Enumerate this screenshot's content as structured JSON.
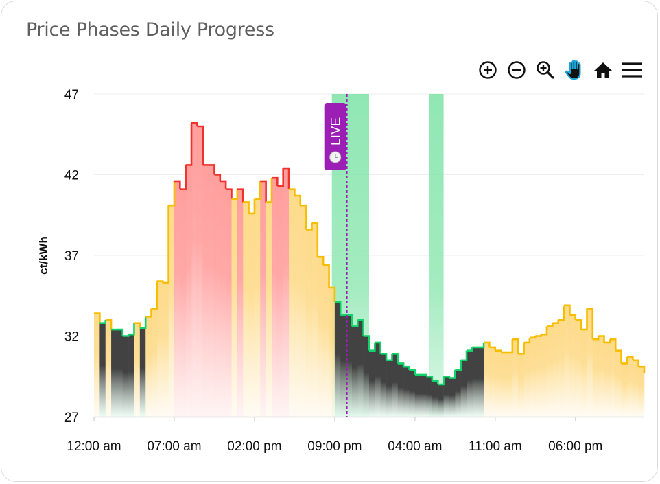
{
  "card": {
    "title": "Price Phases Daily Progress"
  },
  "toolbar": {
    "icons": [
      "zoom-in-icon",
      "zoom-out-icon",
      "selection-zoom-icon",
      "pan-hand-icon",
      "reset-home-icon",
      "menu-icon"
    ],
    "pan_active_color": "#1ea7d8"
  },
  "chart_data": {
    "type": "area",
    "subtype": "step",
    "title": "Price Phases Daily Progress",
    "ylabel": "ct/kWh",
    "xlabel": "",
    "ylim": [
      27,
      47
    ],
    "yticks": [
      47,
      42,
      37,
      32,
      27
    ],
    "xticks": [
      "12:00 am",
      "07:00 am",
      "02:00 pm",
      "09:00 pm",
      "04:00 am",
      "11:00 am",
      "06:00 pm"
    ],
    "grid": true,
    "phase_colors": {
      "high": {
        "stroke": "#f0322c",
        "fill": "#ff9a98"
      },
      "mid": {
        "stroke": "#f7bd00",
        "fill": "#fdd985"
      },
      "low": {
        "stroke": "#10d46a",
        "fill": "#424242"
      }
    },
    "highlight_color": "#7de3a6",
    "highlight_bands": [
      {
        "day": 1,
        "from": "20:45",
        "to": "24:00"
      },
      {
        "day": 2,
        "from": "05:15",
        "to": "06:30"
      }
    ],
    "live_marker": {
      "label": "LIVE",
      "day": 1,
      "time": "22:04",
      "color": "#9b1fb5"
    },
    "interval_minutes": 30,
    "points": [
      [
        "00:00",
        33.4,
        "mid"
      ],
      [
        "00:30",
        32.8,
        "low"
      ],
      [
        "01:00",
        33.0,
        "mid"
      ],
      [
        "01:30",
        32.4,
        "low"
      ],
      [
        "02:00",
        32.4,
        "low"
      ],
      [
        "02:30",
        32.0,
        "low"
      ],
      [
        "03:00",
        32.1,
        "low"
      ],
      [
        "03:30",
        32.8,
        "mid"
      ],
      [
        "04:00",
        32.5,
        "low"
      ],
      [
        "04:30",
        33.2,
        "mid"
      ],
      [
        "05:00",
        33.7,
        "mid"
      ],
      [
        "05:30",
        35.4,
        "mid"
      ],
      [
        "06:00",
        35.3,
        "mid"
      ],
      [
        "06:30",
        40.1,
        "mid"
      ],
      [
        "07:00",
        41.6,
        "high"
      ],
      [
        "07:30",
        41.1,
        "high"
      ],
      [
        "08:00",
        42.6,
        "high"
      ],
      [
        "08:30",
        45.2,
        "high"
      ],
      [
        "09:00",
        45.0,
        "high"
      ],
      [
        "09:30",
        42.6,
        "high"
      ],
      [
        "10:00",
        42.6,
        "high"
      ],
      [
        "10:30",
        42.0,
        "high"
      ],
      [
        "11:00",
        41.6,
        "high"
      ],
      [
        "11:30",
        41.1,
        "high"
      ],
      [
        "12:00",
        40.5,
        "mid"
      ],
      [
        "12:30",
        41.1,
        "high"
      ],
      [
        "13:00",
        40.3,
        "mid"
      ],
      [
        "13:30",
        39.6,
        "mid"
      ],
      [
        "14:00",
        40.5,
        "mid"
      ],
      [
        "14:30",
        41.6,
        "high"
      ],
      [
        "15:00",
        40.3,
        "mid"
      ],
      [
        "15:30",
        41.8,
        "high"
      ],
      [
        "16:00",
        41.3,
        "high"
      ],
      [
        "16:30",
        42.4,
        "high"
      ],
      [
        "17:00",
        41.1,
        "mid"
      ],
      [
        "17:30",
        40.7,
        "mid"
      ],
      [
        "18:00",
        40.1,
        "mid"
      ],
      [
        "18:30",
        38.6,
        "mid"
      ],
      [
        "19:00",
        39.0,
        "mid"
      ],
      [
        "19:30",
        36.9,
        "mid"
      ],
      [
        "20:00",
        36.4,
        "mid"
      ],
      [
        "20:30",
        35.0,
        "mid"
      ],
      [
        "21:00",
        34.1,
        "low"
      ],
      [
        "21:30",
        33.3,
        "low"
      ],
      [
        "22:00",
        33.3,
        "low"
      ],
      [
        "22:30",
        32.6,
        "low"
      ],
      [
        "23:00",
        33.0,
        "low"
      ],
      [
        "23:30",
        32.0,
        "low"
      ],
      [
        "00:00",
        31.1,
        "low"
      ],
      [
        "00:30",
        31.6,
        "low"
      ],
      [
        "01:00",
        30.9,
        "low"
      ],
      [
        "01:30",
        30.5,
        "low"
      ],
      [
        "02:00",
        30.9,
        "low"
      ],
      [
        "02:30",
        30.3,
        "low"
      ],
      [
        "03:00",
        30.1,
        "low"
      ],
      [
        "03:30",
        29.9,
        "low"
      ],
      [
        "04:00",
        29.6,
        "low"
      ],
      [
        "04:30",
        29.6,
        "low"
      ],
      [
        "05:00",
        29.5,
        "low"
      ],
      [
        "05:30",
        29.2,
        "low"
      ],
      [
        "06:00",
        29.0,
        "low"
      ],
      [
        "06:30",
        29.5,
        "low"
      ],
      [
        "07:00",
        29.4,
        "low"
      ],
      [
        "07:30",
        29.9,
        "low"
      ],
      [
        "08:00",
        30.5,
        "low"
      ],
      [
        "08:30",
        31.1,
        "low"
      ],
      [
        "09:00",
        31.3,
        "low"
      ],
      [
        "09:30",
        31.3,
        "low"
      ],
      [
        "10:00",
        31.6,
        "mid"
      ],
      [
        "10:30",
        31.3,
        "mid"
      ],
      [
        "11:00",
        31.1,
        "mid"
      ],
      [
        "11:30",
        31.0,
        "mid"
      ],
      [
        "12:00",
        31.0,
        "mid"
      ],
      [
        "12:30",
        31.8,
        "mid"
      ],
      [
        "13:00",
        30.9,
        "mid"
      ],
      [
        "13:30",
        31.6,
        "mid"
      ],
      [
        "14:00",
        31.9,
        "mid"
      ],
      [
        "14:30",
        32.0,
        "mid"
      ],
      [
        "15:00",
        32.1,
        "mid"
      ],
      [
        "15:30",
        32.6,
        "mid"
      ],
      [
        "16:00",
        32.8,
        "mid"
      ],
      [
        "16:30",
        33.0,
        "mid"
      ],
      [
        "17:00",
        33.9,
        "mid"
      ],
      [
        "17:30",
        33.3,
        "mid"
      ],
      [
        "18:00",
        33.0,
        "mid"
      ],
      [
        "18:30",
        32.4,
        "mid"
      ],
      [
        "19:00",
        33.7,
        "mid"
      ],
      [
        "19:30",
        31.8,
        "mid"
      ],
      [
        "20:00",
        32.0,
        "mid"
      ],
      [
        "20:30",
        31.6,
        "mid"
      ],
      [
        "21:00",
        31.8,
        "mid"
      ],
      [
        "21:30",
        31.1,
        "mid"
      ],
      [
        "22:00",
        30.3,
        "mid"
      ],
      [
        "22:30",
        30.7,
        "mid"
      ],
      [
        "23:00",
        30.5,
        "mid"
      ],
      [
        "23:30",
        30.1,
        "mid"
      ]
    ]
  }
}
